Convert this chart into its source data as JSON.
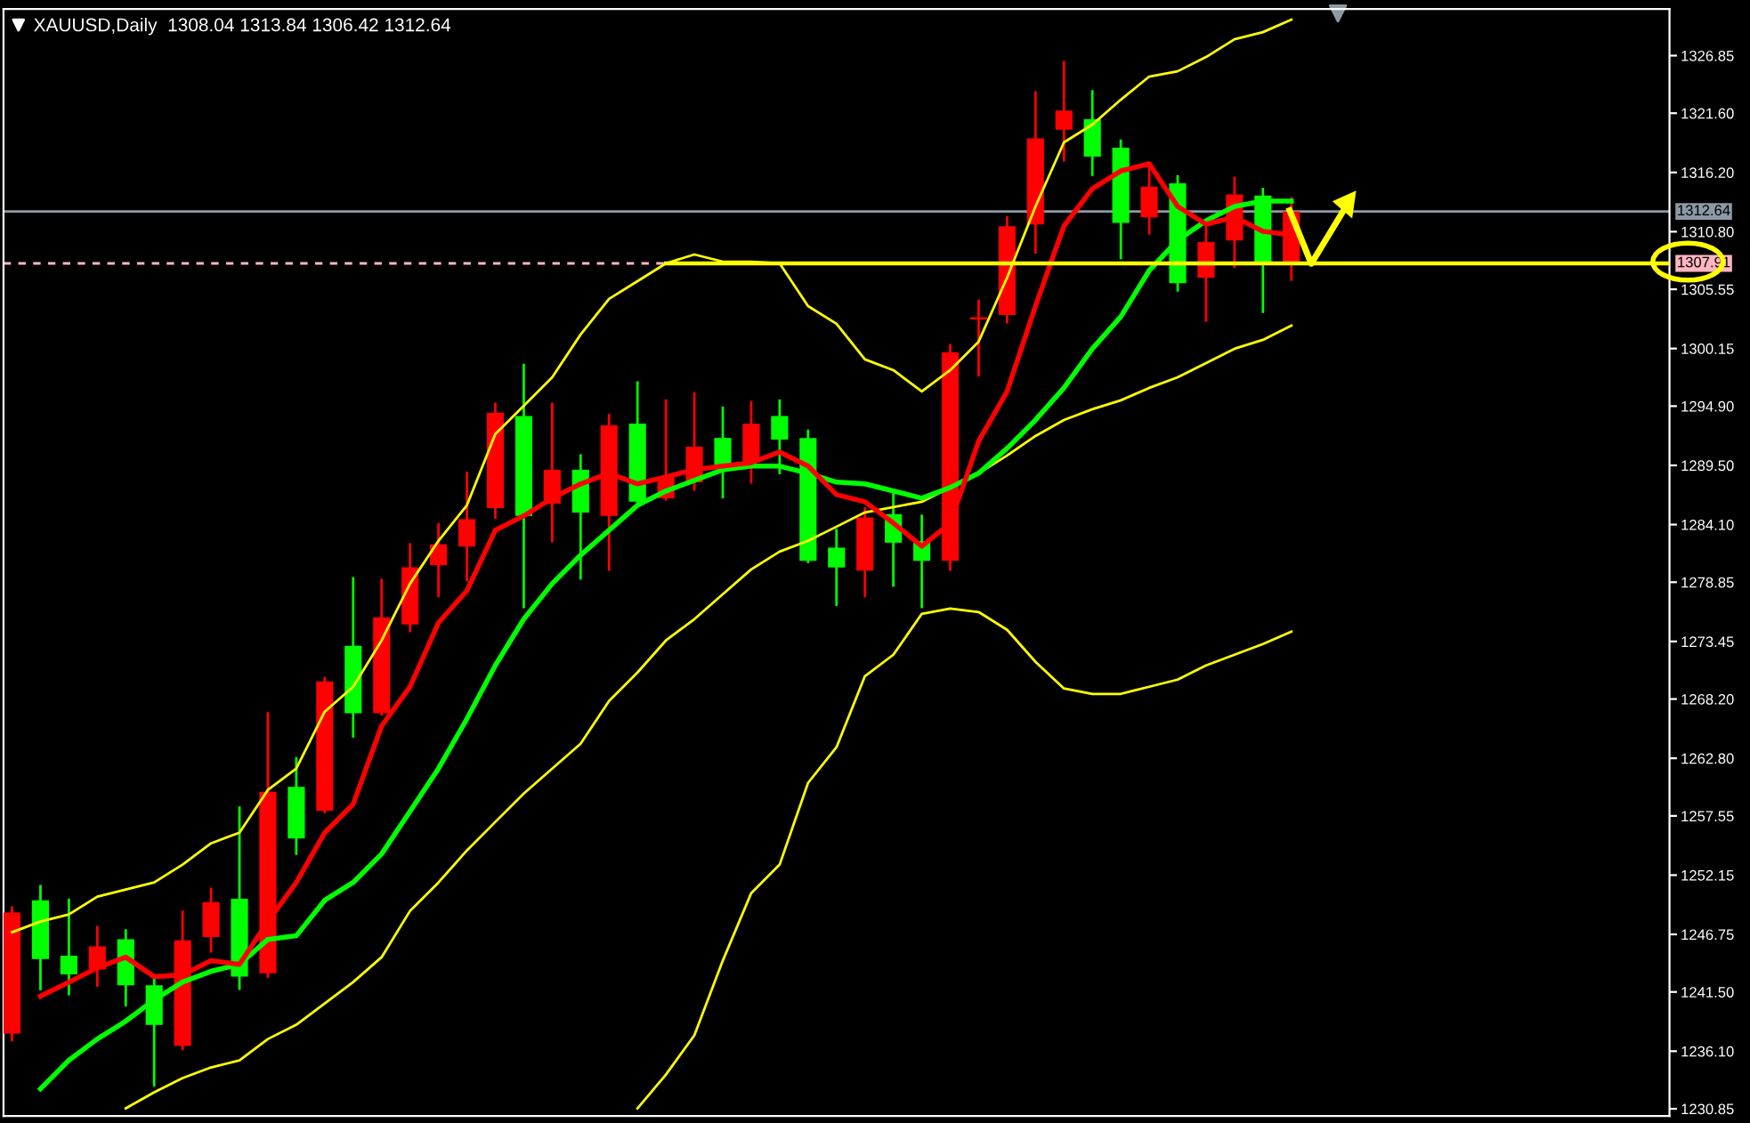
{
  "chart_data": {
    "type": "candlestick",
    "title": "XAUUSD,Daily  1308.04 1313.84 1306.42 1312.64",
    "categories": [
      null,
      null,
      null,
      null,
      null,
      null,
      null,
      null,
      null,
      null,
      null,
      null,
      null,
      null,
      null,
      null,
      null,
      null,
      null,
      null,
      null,
      null,
      null,
      null,
      null,
      null,
      null,
      null,
      null,
      null,
      null,
      null,
      null,
      null,
      null,
      null,
      null,
      null,
      null,
      null,
      null,
      null,
      null,
      null,
      null,
      null
    ],
    "tick_labels": "y",
    "grid": false,
    "ohlc": [
      [
        1237.7,
        1249.2,
        1237.1,
        1248.73
      ],
      [
        1249.85,
        1251.15,
        1241.75,
        1244.5
      ],
      [
        1244.8,
        1249.9,
        1241.3,
        1243.1
      ],
      [
        1243.55,
        1247.4,
        1242.1,
        1245.65
      ],
      [
        1246.3,
        1247.1,
        1240.3,
        1242.1
      ],
      [
        1242.1,
        1243.0,
        1233.0,
        1238.5
      ],
      [
        1236.6,
        1248.8,
        1236.3,
        1246.2
      ],
      [
        1246.5,
        1250.9,
        1245.2,
        1249.7
      ],
      [
        1250.0,
        1258.3,
        1241.8,
        1242.9
      ],
      [
        1243.2,
        1266.9,
        1242.9,
        1259.75
      ],
      [
        1260.2,
        1262.8,
        1254.1,
        1255.5
      ],
      [
        1258.0,
        1270.1,
        1257.9,
        1269.8
      ],
      [
        1273.05,
        1279.2,
        1264.8,
        1266.9
      ],
      [
        1266.9,
        1279.05,
        1266.8,
        1275.65
      ],
      [
        1275.0,
        1282.3,
        1274.4,
        1280.2
      ],
      [
        1280.4,
        1284.1,
        1277.6,
        1282.3
      ],
      [
        1282.1,
        1288.8,
        1279.05,
        1284.6
      ],
      [
        1285.6,
        1295.1,
        1284.75,
        1294.3
      ],
      [
        1294.0,
        1298.65,
        1276.6,
        1284.9
      ],
      [
        1286.0,
        1295.1,
        1282.6,
        1289.1
      ],
      [
        1289.1,
        1290.4,
        1279.2,
        1285.2
      ],
      [
        1284.9,
        1294.1,
        1280.0,
        1293.15
      ],
      [
        1293.3,
        1297.05,
        1286.1,
        1286.2
      ],
      [
        1286.5,
        1295.4,
        1286.4,
        1288.45
      ],
      [
        1287.95,
        1296.05,
        1287.3,
        1291.2
      ],
      [
        1292.0,
        1294.75,
        1286.6,
        1289.4
      ],
      [
        1289.75,
        1295.25,
        1287.95,
        1293.3
      ],
      [
        1294.0,
        1295.4,
        1288.8,
        1291.85
      ],
      [
        1292.0,
        1292.65,
        1280.7,
        1280.8
      ],
      [
        1282.0,
        1283.6,
        1276.8,
        1280.2
      ],
      [
        1279.9,
        1285.55,
        1277.6,
        1284.75
      ],
      [
        1285.05,
        1286.85,
        1278.55,
        1282.45
      ],
      [
        1282.6,
        1284.9,
        1276.6,
        1280.8
      ],
      [
        1280.8,
        1300.45,
        1280.0,
        1299.8
      ],
      [
        1302.8,
        1304.5,
        1297.7,
        1303.0
      ],
      [
        1303.2,
        1312.1,
        1302.55,
        1311.3
      ],
      [
        1311.45,
        1323.5,
        1308.9,
        1319.3
      ],
      [
        1320.1,
        1326.25,
        1317.3,
        1321.85
      ],
      [
        1321.05,
        1323.6,
        1316.0,
        1317.65
      ],
      [
        1318.45,
        1319.1,
        1308.4,
        1311.6
      ],
      [
        1312.1,
        1316.8,
        1310.65,
        1314.9
      ],
      [
        1315.2,
        1315.85,
        1305.45,
        1306.1
      ],
      [
        1306.6,
        1311.3,
        1302.7,
        1309.85
      ],
      [
        1310.0,
        1315.7,
        1307.6,
        1314.2
      ],
      [
        1314.1,
        1314.7,
        1303.5,
        1307.75
      ],
      [
        1308.04,
        1313.84,
        1306.42,
        1312.64
      ]
    ],
    "colors": [
      "#ff0000",
      "#00ff00",
      "#00ff00",
      "#ff0000",
      "#00ff00",
      "#00ff00",
      "#ff0000",
      "#ff0000",
      "#00ff00",
      "#ff0000",
      "#00ff00",
      "#ff0000",
      "#00ff00",
      "#ff0000",
      "#ff0000",
      "#ff0000",
      "#ff0000",
      "#ff0000",
      "#00ff00",
      "#ff0000",
      "#00ff00",
      "#ff0000",
      "#00ff00",
      "#ff0000",
      "#ff0000",
      "#00ff00",
      "#ff0000",
      "#00ff00",
      "#00ff00",
      "#00ff00",
      "#ff0000",
      "#00ff00",
      "#00ff00",
      "#ff0000",
      "#ff0000",
      "#ff0000",
      "#ff0000",
      "#ff0000",
      "#00ff00",
      "#00ff00",
      "#ff0000",
      "#00ff00",
      "#ff0000",
      "#ff0000",
      "#00ff00",
      "#ff0000"
    ],
    "series": [
      {
        "type": "line",
        "color": "#ffff00",
        "values": [
          1246.94,
          1247.92,
          1248.56,
          1250.19,
          1250.83,
          1251.48,
          1253.11,
          1255.05,
          1256.02,
          1259.92,
          1261.86,
          1267.05,
          1269.32,
          1273.54,
          1278.72,
          1282.62,
          1285.86,
          1292.35,
          1294.94,
          1297.53,
          1301.43,
          1304.67,
          1306.29,
          1307.91,
          1308.72,
          1308.07,
          1308.07,
          1307.91,
          1304.02,
          1302.4,
          1299.16,
          1298.18,
          1296.24,
          1298.18,
          1300.78,
          1306.61,
          1313.1,
          1318.94,
          1320.56,
          1322.83,
          1324.94,
          1325.42,
          1326.72,
          1328.34,
          1328.99,
          1330.13
        ]
      },
      {
        "type": "line",
        "color": "#ffff00",
        "values": [
          null,
          null,
          null,
          null,
          1230.89,
          1232.35,
          1233.65,
          1234.62,
          1235.27,
          1237.21,
          1238.51,
          1240.46,
          1242.4,
          1244.67,
          1248.89,
          1251.48,
          1254.4,
          1257.0,
          1259.59,
          1261.86,
          1264.13,
          1268.02,
          1270.62,
          1273.54,
          1275.48,
          1277.75,
          1280.02,
          1281.64,
          1282.62,
          1283.91,
          1285.21,
          1285.7,
          1286.18,
          1287.48,
          1288.78,
          1290.4,
          1292.18,
          1293.64,
          1294.62,
          1295.43,
          1296.56,
          1297.53,
          1298.83,
          1300.13,
          1300.94,
          1302.24
        ]
      },
      {
        "type": "line",
        "color": "#ffff00",
        "values": [
          null,
          null,
          null,
          null,
          null,
          null,
          null,
          null,
          null,
          null,
          null,
          null,
          null,
          null,
          null,
          null,
          null,
          null,
          null,
          null,
          null,
          null,
          1230.89,
          1233.97,
          1237.54,
          1244.35,
          1250.51,
          1253.11,
          1260.56,
          1263.81,
          1270.29,
          1272.24,
          1275.97,
          1276.45,
          1276.13,
          1274.51,
          1271.59,
          1269.16,
          1268.67,
          1268.67,
          1269.32,
          1269.97,
          1271.27,
          1272.24,
          1273.21,
          1274.35
        ]
      },
      {
        "type": "line",
        "color": "#00ff00",
        "values": [
          null,
          1232.67,
          1235.27,
          1237.21,
          1238.84,
          1240.78,
          1242.4,
          1243.38,
          1244.02,
          1246.29,
          1246.62,
          1249.86,
          1251.48,
          1254.08,
          1257.97,
          1261.86,
          1266.4,
          1271.27,
          1275.48,
          1278.72,
          1281.32,
          1283.59,
          1285.86,
          1287.16,
          1288.13,
          1289.1,
          1289.43,
          1289.43,
          1288.78,
          1287.97,
          1287.81,
          1287.16,
          1286.51,
          1287.48,
          1288.78,
          1291.05,
          1293.64,
          1296.56,
          1300.13,
          1303.05,
          1307.26,
          1310.02,
          1311.8,
          1313.1,
          1313.59,
          1313.59
        ]
      },
      {
        "type": "line",
        "color": "#ff0000",
        "values": [
          null,
          1241.11,
          1242.4,
          1243.7,
          1244.67,
          1242.89,
          1243.05,
          1244.35,
          1244.02,
          1247.92,
          1251.48,
          1256.02,
          1258.62,
          1265.75,
          1269.32,
          1275.16,
          1278.08,
          1283.59,
          1284.89,
          1286.51,
          1287.81,
          1288.78,
          1287.81,
          1288.45,
          1289.1,
          1289.43,
          1289.75,
          1290.72,
          1289.43,
          1286.83,
          1286.18,
          1284.24,
          1282.13,
          1284.24,
          1291.7,
          1296.24,
          1304.02,
          1311.32,
          1314.72,
          1316.34,
          1316.99,
          1313.1,
          1311.48,
          1312.13,
          1310.83,
          1310.51
        ]
      },
      {
        "type": "line",
        "color": "#ffff00",
        "values": [
          null,
          null,
          null,
          null,
          null,
          null,
          null,
          null,
          null,
          null,
          null,
          null,
          null,
          null,
          null,
          null,
          null,
          null,
          null,
          null,
          null,
          null,
          null,
          1307.91,
          1307.91,
          1307.91,
          1307.91,
          1307.91,
          1307.91,
          1307.91,
          1307.91,
          1307.91,
          1307.91,
          1307.91,
          1307.91,
          1307.91,
          1307.91,
          1307.91,
          1307.91,
          1307.91,
          1307.91,
          1307.91,
          1307.91,
          1307.91,
          1307.91,
          1307.91
        ]
      }
    ],
    "ylim": [
      1230.2,
      1331.1
    ],
    "yticks": [
      {
        "value": 1326.85,
        "label": "1326.85"
      },
      {
        "value": 1321.6,
        "label": "1321.60"
      },
      {
        "value": 1316.2,
        "label": "1316.20"
      },
      {
        "value": 1310.8,
        "label": "1310.80"
      },
      {
        "value": 1305.55,
        "label": "1305.55"
      },
      {
        "value": 1300.15,
        "label": "1300.15"
      },
      {
        "value": 1294.9,
        "label": "1294.90"
      },
      {
        "value": 1289.5,
        "label": "1289.50"
      },
      {
        "value": 1284.1,
        "label": "1284.10"
      },
      {
        "value": 1278.85,
        "label": "1278.85"
      },
      {
        "value": 1273.45,
        "label": "1273.45"
      },
      {
        "value": 1268.2,
        "label": "1268.20"
      },
      {
        "value": 1262.8,
        "label": "1262.80"
      },
      {
        "value": 1257.55,
        "label": "1257.55"
      },
      {
        "value": 1252.15,
        "label": "1252.15"
      },
      {
        "value": 1246.75,
        "label": "1246.75"
      },
      {
        "value": 1241.5,
        "label": "1241.50"
      },
      {
        "value": 1236.1,
        "label": "1236.10"
      },
      {
        "value": 1230.85,
        "label": "1230.85"
      }
    ],
    "ref_lines": [
      {
        "axis": "y",
        "value": 1312.64,
        "label": "1312.64",
        "color": "#8c9aa6",
        "line_style": "solid"
      },
      {
        "axis": "y",
        "value": 1307.91,
        "label": "1307.91",
        "color": "#ffb6c1",
        "line_style": "dashed"
      }
    ]
  }
}
